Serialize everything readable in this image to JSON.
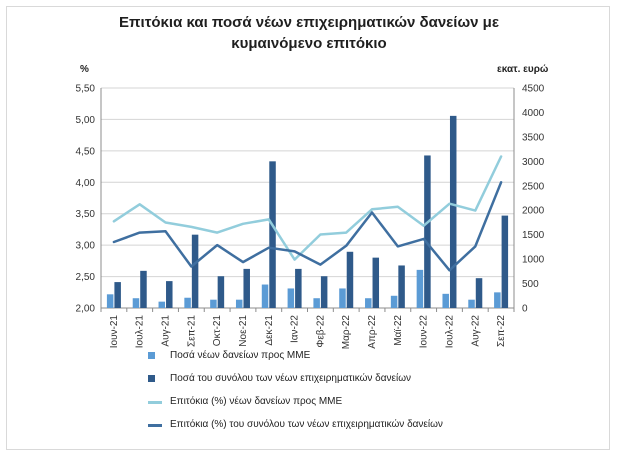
{
  "chart_data": {
    "type": "bar",
    "title_lines": [
      "Επιτόκια και ποσά νέων επιχειρηματικών δανείων με",
      "κυμαινόμενο επιτόκιο"
    ],
    "y_left_unit": "%",
    "y_right_unit": "εκατ. ευρώ",
    "categories": [
      "Ιουν-21",
      "Ιουλ-21",
      "Αυγ-21",
      "Σεπ-21",
      "Οκτ-21",
      "Νοε-21",
      "Δεκ-21",
      "Ιαν-22",
      "Φεβ-22",
      "Μαρ-22",
      "Απρ-22",
      "Μαϊ-22",
      "Ιουν-22",
      "Ιουλ-22",
      "Αυγ-22",
      "Σεπ-22"
    ],
    "y_left_ticks": [
      "2,00",
      "2,50",
      "3,00",
      "3,50",
      "4,00",
      "4,50",
      "5,00",
      "5,50"
    ],
    "y_left_lim": [
      2.0,
      5.5
    ],
    "y_right_ticks": [
      "0",
      "500",
      "1000",
      "1500",
      "2000",
      "2500",
      "3000",
      "3500",
      "4000",
      "4500"
    ],
    "y_right_lim": [
      0,
      4500
    ],
    "series": [
      {
        "name": "Ποσά νέων δανείων προς ΜΜΕ",
        "kind": "bar",
        "axis": "right",
        "color": "#5b9bd5",
        "values": [
          280,
          200,
          130,
          210,
          170,
          170,
          480,
          400,
          200,
          400,
          200,
          250,
          780,
          290,
          170,
          320
        ]
      },
      {
        "name": "Ποσά του συνόλου των νέων επιχειρηματικών δανείων",
        "kind": "bar",
        "axis": "right",
        "color": "#2f5a8a",
        "values": [
          530,
          760,
          550,
          1500,
          650,
          800,
          3000,
          800,
          650,
          1150,
          1030,
          870,
          3120,
          3930,
          610,
          1890
        ]
      },
      {
        "name": "Επιτόκια (%) νέων δανείων προς ΜΜΕ",
        "kind": "line",
        "axis": "left",
        "color": "#92cddc",
        "values": [
          3.38,
          3.65,
          3.36,
          3.29,
          3.2,
          3.34,
          3.41,
          2.77,
          3.17,
          3.2,
          3.57,
          3.61,
          3.31,
          3.66,
          3.55,
          4.41
        ]
      },
      {
        "name": "Επιτόκια (%) του συνόλου των νέων επιχειρηματικών δανείων",
        "kind": "line",
        "axis": "left",
        "color": "#3f6fa0",
        "values": [
          3.05,
          3.2,
          3.22,
          2.66,
          3.0,
          2.73,
          2.96,
          2.9,
          2.69,
          2.99,
          3.52,
          2.98,
          3.1,
          2.6,
          2.98,
          4.0
        ]
      }
    ],
    "grid": true,
    "legend_position": "bottom"
  }
}
